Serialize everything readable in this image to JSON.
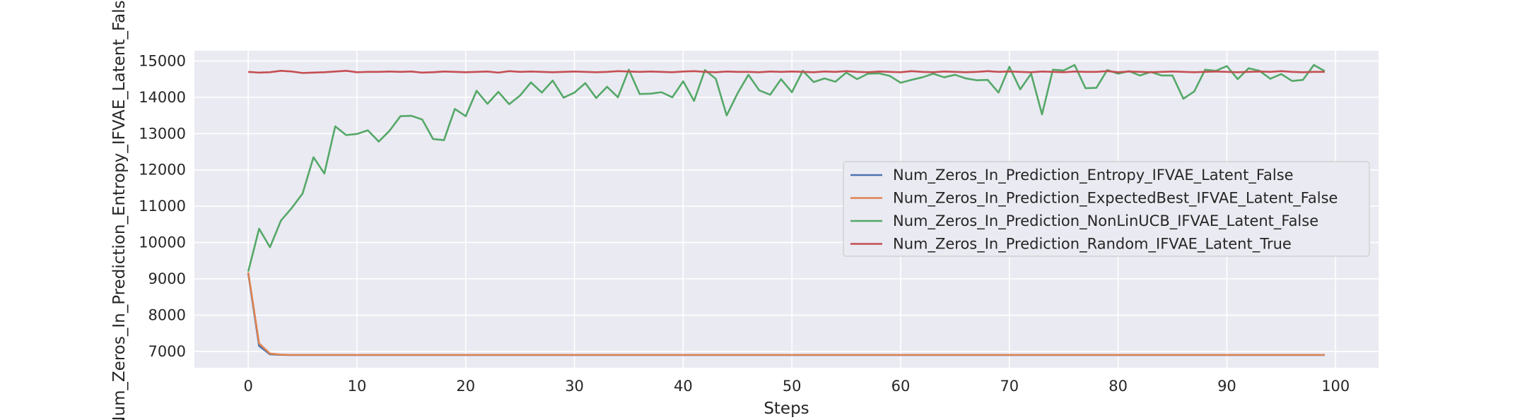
{
  "chart_data": {
    "type": "line",
    "title": "",
    "xlabel": "Steps",
    "ylabel": "Num_Zeros_In_Prediction_Entropy_IFVAE_Latent_False",
    "xlim": [
      -4.95,
      103.95
    ],
    "ylim": [
      6550,
      15280
    ],
    "xticks": [
      0,
      10,
      20,
      30,
      40,
      50,
      60,
      70,
      80,
      90,
      100
    ],
    "yticks": [
      7000,
      8000,
      9000,
      10000,
      11000,
      12000,
      13000,
      14000,
      15000
    ],
    "grid": true,
    "legend_position": "center-right",
    "background_color": "#eaeaf2",
    "grid_color": "#ffffff",
    "series": [
      {
        "name": "Num_Zeros_In_Prediction_Entropy_IFVAE_Latent_False",
        "color": "#4c72b0",
        "x_start": 0,
        "values": [
          9150,
          7150,
          6920,
          6905,
          6900,
          6900,
          6900,
          6900,
          6900,
          6900,
          6900,
          6900,
          6900,
          6900,
          6900,
          6900,
          6900,
          6900,
          6900,
          6900,
          6900,
          6900,
          6900,
          6900,
          6900,
          6900,
          6900,
          6900,
          6900,
          6900,
          6900,
          6900,
          6900,
          6900,
          6900,
          6900,
          6900,
          6900,
          6900,
          6900,
          6900,
          6900,
          6900,
          6900,
          6900,
          6900,
          6900,
          6900,
          6900,
          6900,
          6900,
          6900,
          6900,
          6900,
          6900,
          6900,
          6900,
          6900,
          6900,
          6900,
          6900,
          6900,
          6900,
          6900,
          6900,
          6900,
          6900,
          6900,
          6900,
          6900,
          6900,
          6900,
          6900,
          6900,
          6900,
          6900,
          6900,
          6900,
          6900,
          6900,
          6900,
          6900,
          6900,
          6900,
          6900,
          6900,
          6900,
          6900,
          6900,
          6900,
          6900,
          6900,
          6900,
          6900,
          6900,
          6900,
          6900,
          6900,
          6900,
          6900
        ]
      },
      {
        "name": "Num_Zeros_In_Prediction_ExpectedBest_IFVAE_Latent_False",
        "color": "#dd8452",
        "x_start": 0,
        "values": [
          9180,
          7220,
          6940,
          6910,
          6905,
          6905,
          6905,
          6905,
          6905,
          6905,
          6905,
          6905,
          6905,
          6905,
          6905,
          6905,
          6905,
          6905,
          6905,
          6905,
          6905,
          6905,
          6905,
          6905,
          6905,
          6905,
          6905,
          6905,
          6905,
          6905,
          6905,
          6905,
          6905,
          6905,
          6905,
          6905,
          6905,
          6905,
          6905,
          6905,
          6905,
          6905,
          6905,
          6905,
          6905,
          6905,
          6905,
          6905,
          6905,
          6905,
          6905,
          6905,
          6905,
          6905,
          6905,
          6905,
          6905,
          6905,
          6905,
          6905,
          6905,
          6905,
          6905,
          6905,
          6905,
          6905,
          6905,
          6905,
          6905,
          6905,
          6905,
          6905,
          6905,
          6905,
          6905,
          6905,
          6905,
          6905,
          6905,
          6905,
          6905,
          6905,
          6905,
          6905,
          6905,
          6905,
          6905,
          6905,
          6905,
          6905,
          6905,
          6905,
          6905,
          6905,
          6905,
          6905,
          6905,
          6905,
          6905,
          6905
        ]
      },
      {
        "name": "Num_Zeros_In_Prediction_NonLinUCB_IFVAE_Latent_False",
        "color": "#55a868",
        "x_start": 0,
        "values": [
          9200,
          10380,
          9870,
          10600,
          10950,
          11350,
          12350,
          11900,
          13200,
          12960,
          12990,
          13090,
          12780,
          13080,
          13480,
          13490,
          13390,
          12850,
          12820,
          13680,
          13480,
          14180,
          13820,
          14150,
          13810,
          14050,
          14410,
          14130,
          14460,
          13990,
          14130,
          14390,
          13980,
          14290,
          14000,
          14760,
          14090,
          14100,
          14140,
          14000,
          14440,
          13900,
          14750,
          14510,
          13500,
          14110,
          14620,
          14190,
          14070,
          14500,
          14140,
          14730,
          14420,
          14520,
          14430,
          14680,
          14500,
          14650,
          14660,
          14590,
          14400,
          14480,
          14550,
          14650,
          14550,
          14620,
          14520,
          14470,
          14480,
          14130,
          14840,
          14220,
          14650,
          13530,
          14760,
          14740,
          14890,
          14250,
          14260,
          14750,
          14650,
          14720,
          14600,
          14700,
          14600,
          14600,
          13960,
          14160,
          14760,
          14730,
          14860,
          14500,
          14800,
          14730,
          14510,
          14640,
          14450,
          14480,
          14890,
          14720
        ]
      },
      {
        "name": "Num_Zeros_In_Prediction_Random_IFVAE_Latent_True",
        "color": "#c44e52",
        "x_start": 0,
        "values": [
          14700,
          14680,
          14690,
          14730,
          14710,
          14670,
          14680,
          14690,
          14710,
          14730,
          14690,
          14700,
          14700,
          14710,
          14700,
          14710,
          14680,
          14690,
          14710,
          14700,
          14690,
          14700,
          14710,
          14680,
          14720,
          14700,
          14710,
          14700,
          14690,
          14700,
          14710,
          14700,
          14690,
          14700,
          14720,
          14710,
          14700,
          14710,
          14700,
          14690,
          14710,
          14720,
          14700,
          14690,
          14710,
          14700,
          14700,
          14690,
          14710,
          14700,
          14710,
          14700,
          14690,
          14710,
          14700,
          14720,
          14700,
          14690,
          14710,
          14700,
          14690,
          14720,
          14700,
          14690,
          14710,
          14700,
          14690,
          14700,
          14720,
          14700,
          14710,
          14700,
          14690,
          14710,
          14700,
          14690,
          14710,
          14700,
          14700,
          14720,
          14690,
          14710,
          14700,
          14690,
          14700,
          14710,
          14700,
          14690,
          14700,
          14710,
          14700,
          14690,
          14700,
          14710,
          14700,
          14720,
          14700,
          14690,
          14700,
          14700
        ]
      }
    ]
  }
}
